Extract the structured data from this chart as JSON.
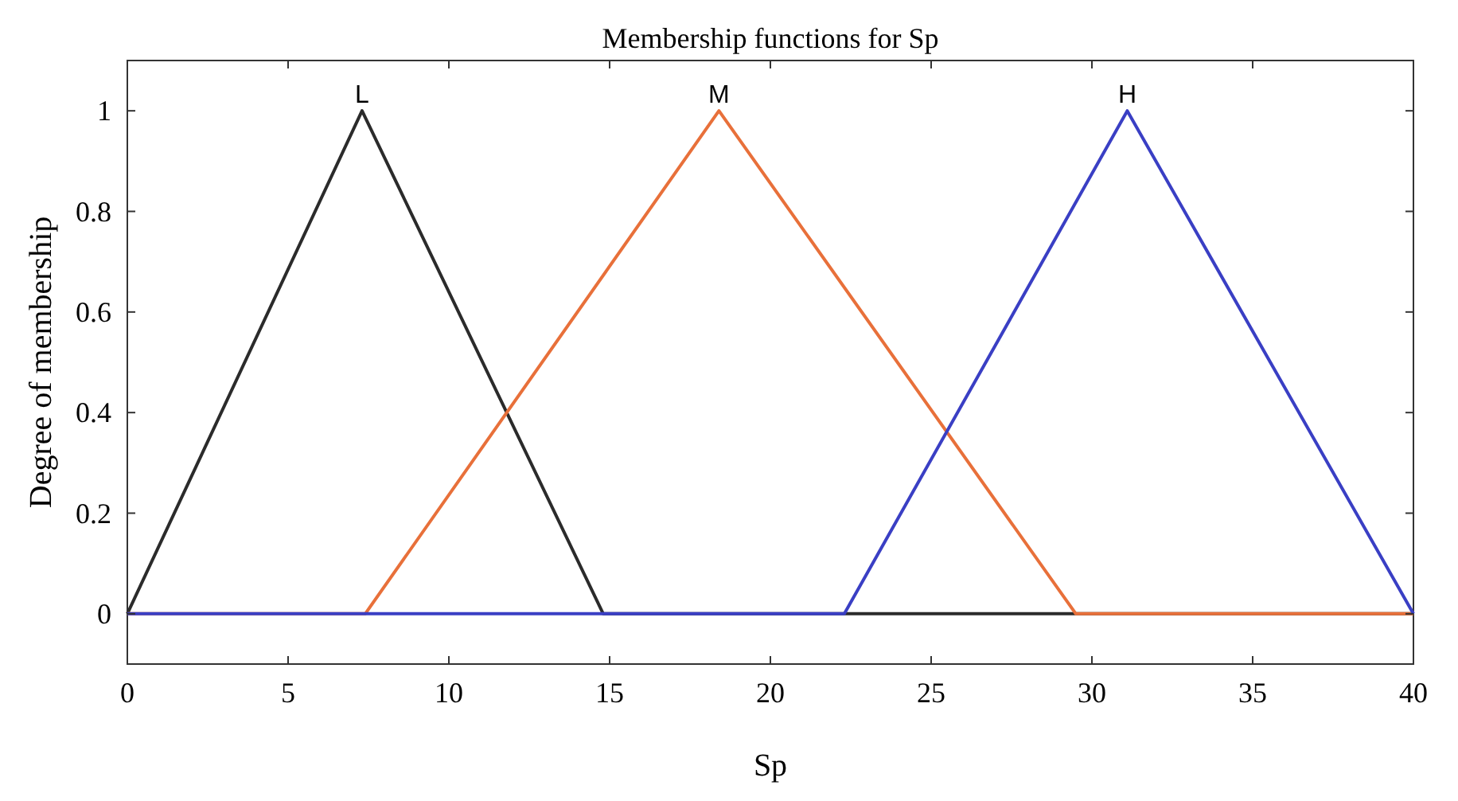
{
  "chart_data": {
    "type": "line",
    "title": "Membership functions for Sp",
    "xlabel": "Sp",
    "ylabel": "Degree of membership",
    "xlim": [
      0,
      40
    ],
    "ylim": [
      -0.1,
      1.1
    ],
    "xticks": [
      0,
      5,
      10,
      15,
      20,
      25,
      30,
      35,
      40
    ],
    "yticks": [
      0,
      0.2,
      0.4,
      0.6,
      0.8,
      1
    ],
    "series": [
      {
        "name": "L",
        "color": "#2b2b2b",
        "x": [
          0,
          7.3,
          14.8,
          40
        ],
        "values": [
          0,
          1,
          0,
          0
        ]
      },
      {
        "name": "M",
        "color": "#e8703a",
        "x": [
          0,
          7.4,
          18.4,
          29.5,
          40
        ],
        "values": [
          0,
          0,
          1,
          0,
          0
        ]
      },
      {
        "name": "H",
        "color": "#3a3fc4",
        "x": [
          0,
          22.3,
          31.1,
          40
        ],
        "values": [
          0,
          0,
          1,
          0
        ]
      }
    ]
  }
}
